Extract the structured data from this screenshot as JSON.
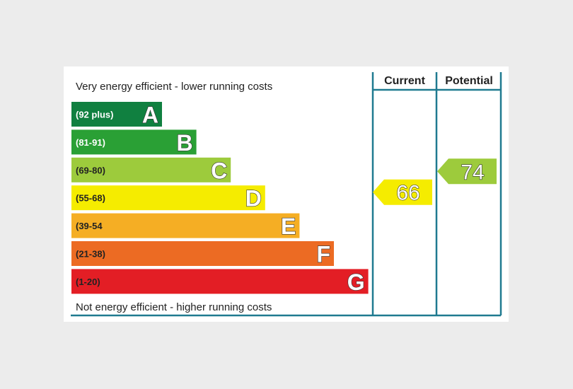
{
  "top_label": "Very energy efficient - lower running costs",
  "bottom_label": "Not energy efficient - higher running costs",
  "columns": {
    "current": "Current",
    "potential": "Potential"
  },
  "colors": {
    "frame": "#1f7a90",
    "A": "#108040",
    "B": "#2aa035",
    "C": "#9dcb3c",
    "D": "#f5ec00",
    "E": "#f5ae24",
    "F": "#ec6b23",
    "G": "#e31e25"
  },
  "chart_data": {
    "type": "bar",
    "bands": [
      {
        "letter": "A",
        "range": "(92 plus)",
        "text_color": "#ffffff"
      },
      {
        "letter": "B",
        "range": "(81-91)",
        "text_color": "#ffffff"
      },
      {
        "letter": "C",
        "range": "(69-80)",
        "text_color": "#222222"
      },
      {
        "letter": "D",
        "range": "(55-68)",
        "text_color": "#222222"
      },
      {
        "letter": "E",
        "range": "(39-54",
        "text_color": "#222222"
      },
      {
        "letter": "F",
        "range": "(21-38)",
        "text_color": "#222222"
      },
      {
        "letter": "G",
        "range": "(1-20)",
        "text_color": "#222222"
      }
    ],
    "current": {
      "value": 66,
      "band": "D"
    },
    "potential": {
      "value": 74,
      "band": "C"
    }
  }
}
